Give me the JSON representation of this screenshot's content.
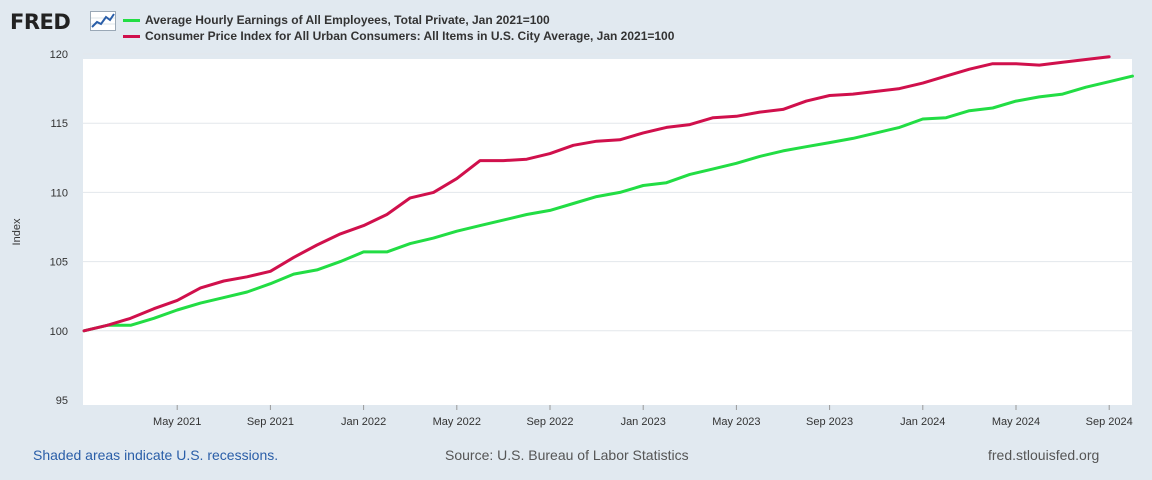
{
  "header": {
    "logo_text": "FRED",
    "logo_icon": "trend-chart-icon"
  },
  "legend": {
    "items": [
      {
        "label": "Average Hourly Earnings of All Employees, Total Private, Jan 2021=100",
        "color": "#22dd44"
      },
      {
        "label": "Consumer Price Index for All Urban Consumers: All Items in U.S. City Average, Jan 2021=100",
        "color": "#d0104c"
      }
    ]
  },
  "chart_data": {
    "type": "line",
    "title": "",
    "xlabel": "",
    "ylabel": "Index",
    "ylim": [
      95,
      120
    ],
    "yticks": [
      95,
      100,
      105,
      110,
      115,
      120
    ],
    "x_start": "Jan 2021",
    "xticks": [
      {
        "label": "May 2021",
        "month_index": 4
      },
      {
        "label": "Sep 2021",
        "month_index": 8
      },
      {
        "label": "Jan 2022",
        "month_index": 12
      },
      {
        "label": "May 2022",
        "month_index": 16
      },
      {
        "label": "Sep 2022",
        "month_index": 20
      },
      {
        "label": "Jan 2023",
        "month_index": 24
      },
      {
        "label": "May 2023",
        "month_index": 28
      },
      {
        "label": "Sep 2023",
        "month_index": 32
      },
      {
        "label": "Jan 2024",
        "month_index": 36
      },
      {
        "label": "May 2024",
        "month_index": 40
      },
      {
        "label": "Sep 2024",
        "month_index": 44
      }
    ],
    "grid": true,
    "series": [
      {
        "name": "Average Hourly Earnings of All Employees, Total Private, Jan 2021=100",
        "color": "#22dd44",
        "values": [
          100.0,
          100.4,
          100.4,
          100.9,
          101.5,
          102.0,
          102.4,
          102.8,
          103.4,
          104.1,
          104.4,
          105.0,
          105.7,
          105.7,
          106.3,
          106.7,
          107.2,
          107.6,
          108.0,
          108.4,
          108.7,
          109.2,
          109.7,
          110.0,
          110.5,
          110.7,
          111.3,
          111.7,
          112.1,
          112.6,
          113.0,
          113.3,
          113.6,
          113.9,
          114.3,
          114.7,
          115.3,
          115.4,
          115.9,
          116.1,
          116.6,
          116.9,
          117.1,
          117.6,
          118.0,
          118.4
        ]
      },
      {
        "name": "Consumer Price Index for All Urban Consumers: All Items in U.S. City Average, Jan 2021=100",
        "color": "#d0104c",
        "values": [
          100.0,
          100.4,
          100.9,
          101.6,
          102.2,
          103.1,
          103.6,
          103.9,
          104.3,
          105.3,
          106.2,
          107.0,
          107.6,
          108.4,
          109.6,
          110.0,
          111.0,
          112.3,
          112.3,
          112.4,
          112.8,
          113.4,
          113.7,
          113.8,
          114.3,
          114.7,
          114.9,
          115.4,
          115.5,
          115.8,
          116.0,
          116.6,
          117.0,
          117.1,
          117.3,
          117.5,
          117.9,
          118.4,
          118.9,
          119.3,
          119.3,
          119.2,
          119.4,
          119.6,
          119.8
        ]
      }
    ]
  },
  "footer": {
    "recession_note": "Shaded areas indicate U.S. recessions.",
    "source": "Source: U.S. Bureau of Labor Statistics",
    "site": "fred.stlouisfed.org"
  }
}
